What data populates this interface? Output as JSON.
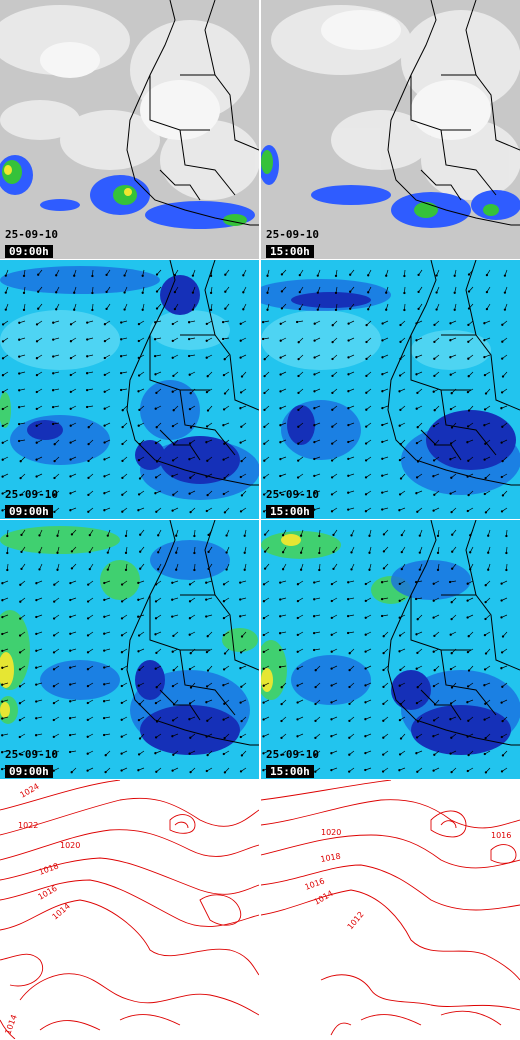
{
  "panels": [
    {
      "row": "satellite",
      "date": "25-09-10",
      "time": "09:00h"
    },
    {
      "row": "satellite",
      "date": "25-09-10",
      "time": "15:00h"
    },
    {
      "row": "wind-low",
      "date": "25-09-10",
      "time": "09:00h"
    },
    {
      "row": "wind-low",
      "date": "25-09-10",
      "time": "15:00h"
    },
    {
      "row": "wind-high",
      "date": "25-09-10",
      "time": "09:00h"
    },
    {
      "row": "wind-high",
      "date": "25-09-10",
      "time": "15:00h"
    },
    {
      "row": "pressure",
      "date": "",
      "time": ""
    },
    {
      "row": "pressure",
      "date": "",
      "time": ""
    }
  ],
  "isobar_labels": {
    "left": [
      "1024",
      "1022",
      "1020",
      "1018",
      "1016",
      "1014",
      "1014"
    ],
    "right": [
      "1020",
      "1018",
      "1016",
      "1014",
      "1012",
      "1016"
    ]
  },
  "colors": {
    "cloud": "#d9d9d9",
    "ocean_wind": "#22c4ee",
    "deep_blue": "#1237c8",
    "green": "#3cc43c",
    "yellow": "#e6e633",
    "isobar": "#dd0000",
    "border": "#000000"
  }
}
